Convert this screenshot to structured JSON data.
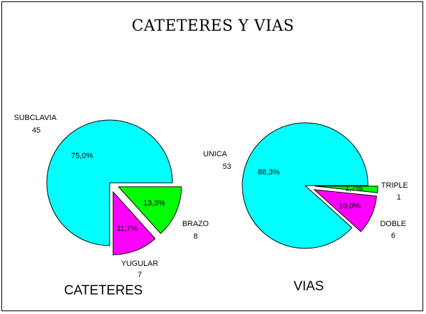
{
  "title": "CATETERES Y VIAS",
  "colors": {
    "cyan": "#00ffff",
    "green": "#00ff00",
    "magenta": "#ff00ff"
  },
  "chart_data": [
    {
      "type": "pie",
      "caption": "CATETERES",
      "slices": [
        {
          "name": "SUBCLAVIA",
          "value": 45,
          "percent": "75,0%",
          "color": "#00ffff"
        },
        {
          "name": "BRAZO",
          "value": 8,
          "percent": "13,3%",
          "color": "#00ff00"
        },
        {
          "name": "YUGULAR",
          "value": 7,
          "percent": "11,7%",
          "color": "#ff00ff"
        }
      ]
    },
    {
      "type": "pie",
      "caption": "VIAS",
      "slices": [
        {
          "name": "UNICA",
          "value": 53,
          "percent": "88,3%",
          "color": "#00ffff"
        },
        {
          "name": "TRIPLE",
          "value": 1,
          "percent": "1,7%",
          "color": "#00ff00"
        },
        {
          "name": "DOBLE",
          "value": 6,
          "percent": "10,0%",
          "color": "#ff00ff"
        }
      ]
    }
  ]
}
